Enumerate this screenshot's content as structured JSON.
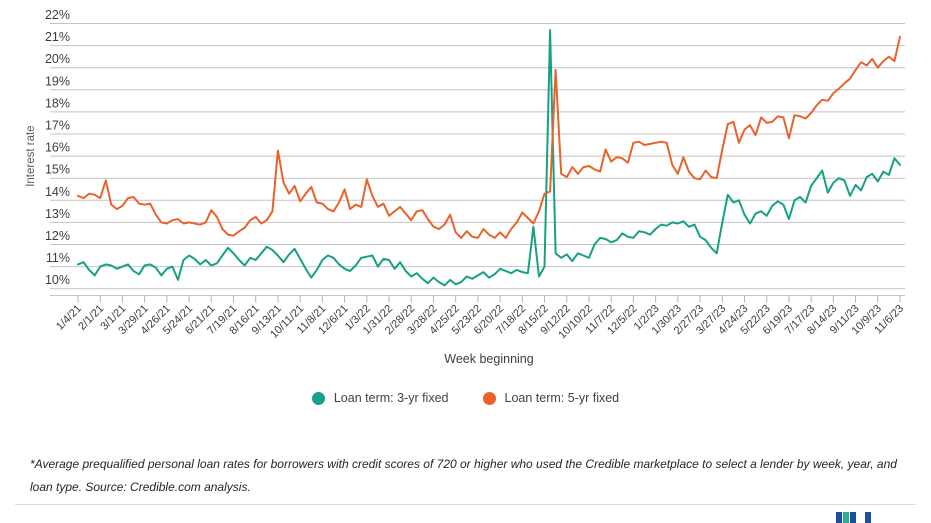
{
  "chart": {
    "y_axis_title": "Interest rate",
    "x_axis_title": "Week beginning",
    "y_tick_labels": [
      "22%",
      "21%",
      "20%",
      "19%",
      "18%",
      "17%",
      "16%",
      "15%",
      "14%",
      "13%",
      "12%",
      "11%",
      "10%"
    ],
    "grid_color": "#c4c4c4",
    "tick_label_color": "#3d3d3d",
    "axis_title_color": "#5a5a5a"
  },
  "chart_data": {
    "type": "line",
    "title": "",
    "xlabel": "Week beginning",
    "ylabel": "Interest rate",
    "ylim": [
      10,
      22
    ],
    "y_tick_step": 1,
    "y_tick_format": "percent",
    "grid": "horizontal",
    "legend_position": "bottom",
    "x_unit": "week",
    "n_points": 149,
    "x_start": "1/4/21",
    "x_end": "11/6/23",
    "x_label_every_n_points": 4,
    "x_tick_labels": [
      "1/4/21",
      "2/1/21",
      "3/1/21",
      "3/29/21",
      "4/26/21",
      "5/24/21",
      "6/21/21",
      "7/19/21",
      "8/16/21",
      "9/13/21",
      "10/11/21",
      "11/8/21",
      "12/6/21",
      "1/3/22",
      "1/31/22",
      "2/28/22",
      "3/28/22",
      "4/25/22",
      "5/23/22",
      "6/20/22",
      "7/18/22",
      "8/15/22",
      "9/12/22",
      "10/10/22",
      "11/7/22",
      "12/5/22",
      "1/2/23",
      "1/30/23",
      "2/27/23",
      "3/27/23",
      "4/24/23",
      "5/22/23",
      "6/19/23",
      "7/17/23",
      "8/14/23",
      "9/11/23",
      "10/9/23",
      "11/6/23"
    ],
    "series": [
      {
        "name": "Loan term: 3-yr fixed",
        "color": "#16a085",
        "weekly_values": [
          11.1,
          11.2,
          10.85,
          10.6,
          11.0,
          11.1,
          11.05,
          10.9,
          11.0,
          11.1,
          10.8,
          10.65,
          11.05,
          11.1,
          10.95,
          10.6,
          10.9,
          11.0,
          10.4,
          11.3,
          11.5,
          11.35,
          11.1,
          11.3,
          11.05,
          11.15,
          11.5,
          11.85,
          11.6,
          11.3,
          11.05,
          11.4,
          11.3,
          11.6,
          11.9,
          11.75,
          11.5,
          11.2,
          11.55,
          11.8,
          11.35,
          10.9,
          10.5,
          10.85,
          11.3,
          11.5,
          11.4,
          11.1,
          10.9,
          10.8,
          11.05,
          11.4,
          11.45,
          11.5,
          11.0,
          11.35,
          11.3,
          10.9,
          11.2,
          10.8,
          10.55,
          10.7,
          10.45,
          10.25,
          10.5,
          10.3,
          10.15,
          10.4,
          10.2,
          10.3,
          10.55,
          10.45,
          10.6,
          10.75,
          10.5,
          10.65,
          10.9,
          10.8,
          10.7,
          10.85,
          10.75,
          10.7,
          12.8,
          10.55,
          11.0,
          21.7,
          11.6,
          11.4,
          11.55,
          11.25,
          11.6,
          11.5,
          11.4,
          12.0,
          12.3,
          12.25,
          12.1,
          12.2,
          12.5,
          12.35,
          12.3,
          12.6,
          12.55,
          12.45,
          12.7,
          12.9,
          12.85,
          13.0,
          12.95,
          13.05,
          12.8,
          12.9,
          12.35,
          12.2,
          11.85,
          11.6,
          13.0,
          14.25,
          13.9,
          14.0,
          13.35,
          12.95,
          13.4,
          13.5,
          13.3,
          13.75,
          13.95,
          13.8,
          13.15,
          14.0,
          14.15,
          13.9,
          14.65,
          15.0,
          15.35,
          14.35,
          14.8,
          15.0,
          14.9,
          14.2,
          14.7,
          14.45,
          15.05,
          15.2,
          14.85,
          15.3,
          15.15,
          15.9,
          15.6
        ]
      },
      {
        "name": "Loan term: 5-yr fixed",
        "color": "#e8632a",
        "weekly_values": [
          14.2,
          14.1,
          14.3,
          14.25,
          14.1,
          14.9,
          13.8,
          13.6,
          13.75,
          14.1,
          14.15,
          13.85,
          13.8,
          13.85,
          13.35,
          13.0,
          12.95,
          13.1,
          13.15,
          12.95,
          13.0,
          12.95,
          12.9,
          13.0,
          13.55,
          13.25,
          12.7,
          12.45,
          12.4,
          12.6,
          12.75,
          13.1,
          13.25,
          12.95,
          13.1,
          13.5,
          16.25,
          14.8,
          14.3,
          14.65,
          13.95,
          14.3,
          14.6,
          13.9,
          13.85,
          13.6,
          13.5,
          13.9,
          14.5,
          13.6,
          13.8,
          13.7,
          14.95,
          14.2,
          13.7,
          13.85,
          13.3,
          13.5,
          13.7,
          13.4,
          13.1,
          13.5,
          13.55,
          13.15,
          12.8,
          12.7,
          12.9,
          13.35,
          12.55,
          12.3,
          12.6,
          12.35,
          12.3,
          12.7,
          12.45,
          12.3,
          12.55,
          12.3,
          12.7,
          13.0,
          13.45,
          13.2,
          12.95,
          13.5,
          14.3,
          14.4,
          19.9,
          15.2,
          15.05,
          15.5,
          15.2,
          15.5,
          15.55,
          15.4,
          15.3,
          16.3,
          15.75,
          15.95,
          15.9,
          15.7,
          16.6,
          16.65,
          16.5,
          16.55,
          16.6,
          16.65,
          16.6,
          15.6,
          15.2,
          15.95,
          15.3,
          15.0,
          14.95,
          15.35,
          15.05,
          15.0,
          16.3,
          17.45,
          17.55,
          16.6,
          17.2,
          17.4,
          16.95,
          17.75,
          17.5,
          17.55,
          17.8,
          17.75,
          16.8,
          17.85,
          17.8,
          17.7,
          17.95,
          18.3,
          18.55,
          18.5,
          18.85,
          19.05,
          19.3,
          19.5,
          19.9,
          20.25,
          20.1,
          20.4,
          20.0,
          20.3,
          20.5,
          20.3,
          21.4
        ]
      }
    ]
  },
  "legend": {
    "items": [
      {
        "label": "Loan term: 3-yr fixed",
        "color": "#16a085"
      },
      {
        "label": "Loan term: 5-yr fixed",
        "color": "#e8632a"
      }
    ]
  },
  "footnote": {
    "text": "*Average prequalified personal loan rates for borrowers with credit scores of 720 or higher who used the Credible marketplace to select a lender by week, year, and loan type. Source: Credible.com analysis."
  },
  "footer_logo": {
    "name": "credible-logo-partial",
    "bar_colors": [
      "#1d4fa1",
      "#2fae8f",
      "#1d4fa1",
      "#1d4fa1"
    ]
  }
}
